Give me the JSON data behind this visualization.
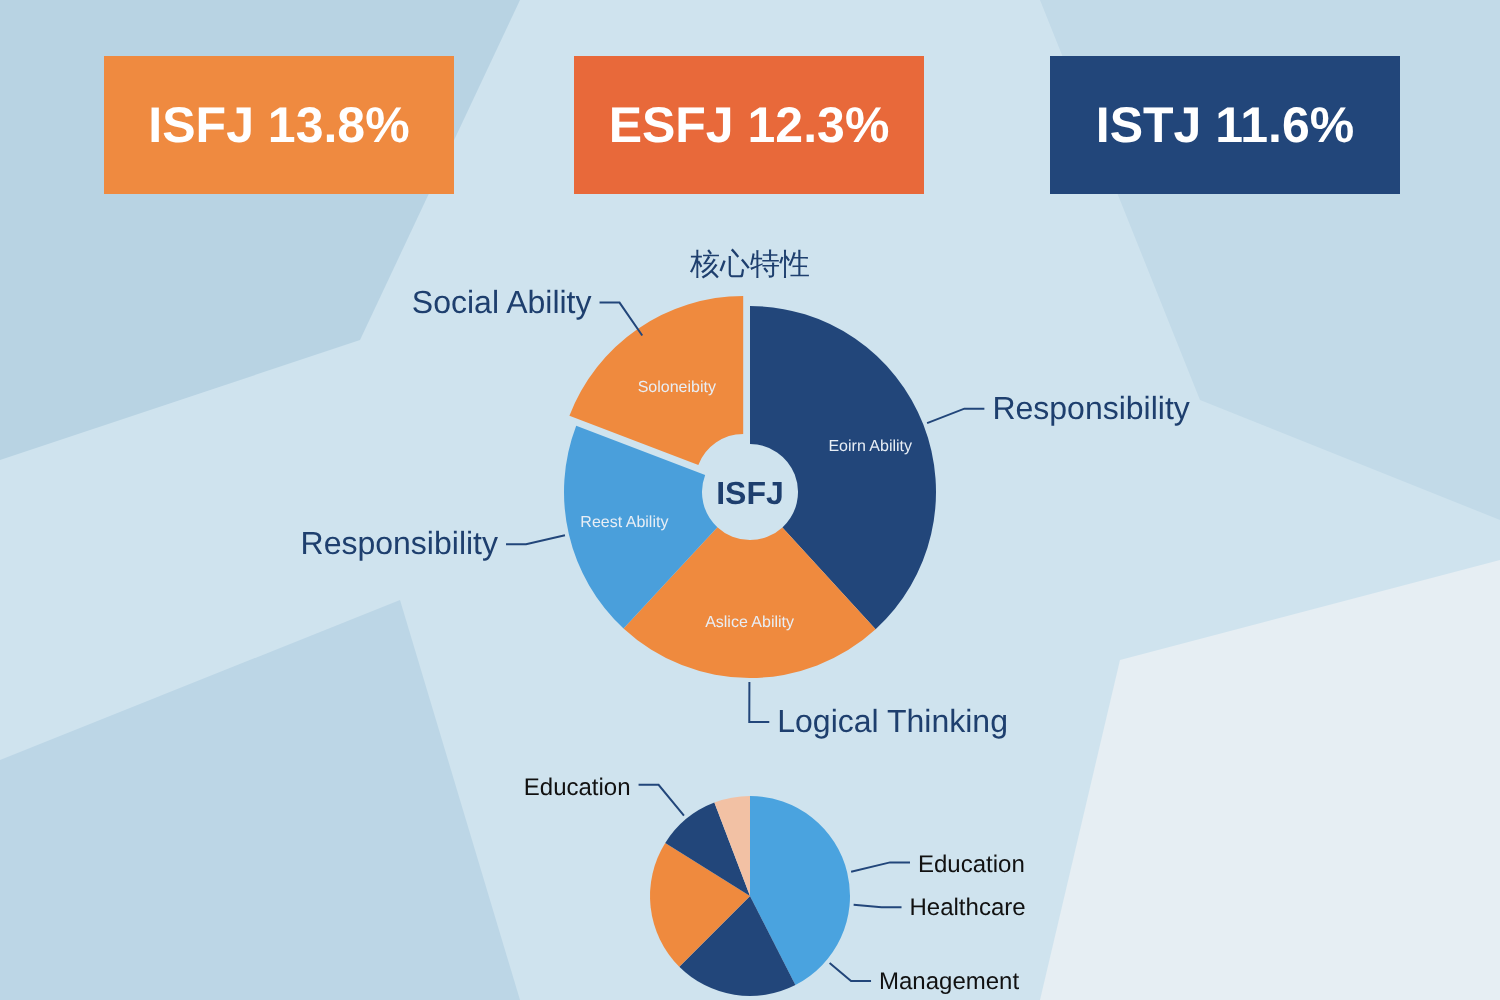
{
  "chart_data": [
    {
      "type": "other",
      "annotations": [
        "ISFJ 13.8%",
        "ESFJ 12.3%",
        "ISTJ 11.6%"
      ],
      "colors": [
        "#ef8a40",
        "#e8693a",
        "#22467a"
      ]
    },
    {
      "type": "donut",
      "title": "核心特性",
      "categories": [
        "Responsibility",
        "Logical Thinking",
        "Responsibility",
        "Social Ability"
      ],
      "values": [
        38.2,
        23.7,
        18.9,
        19.2
      ],
      "colors": [
        "#22467a",
        "#ef8a3e",
        "#4a9fdb",
        "#ef8a3e"
      ],
      "annotations": [
        "ISFJ",
        "Eoirn Ability",
        "Aslice Ability",
        "Reest Ability",
        "Soloneibity"
      ]
    },
    {
      "type": "pie",
      "categories": [
        "Education",
        null,
        null,
        "Education",
        null
      ],
      "values": [
        42.5,
        20.0,
        21.4,
        10.3,
        5.8
      ],
      "colors": [
        "#4aa3df",
        "#22467a",
        "#ef8a3e",
        "#22467a",
        "#f2c1a4"
      ],
      "annotations": [
        "Healthcare",
        "Management"
      ]
    }
  ]
}
